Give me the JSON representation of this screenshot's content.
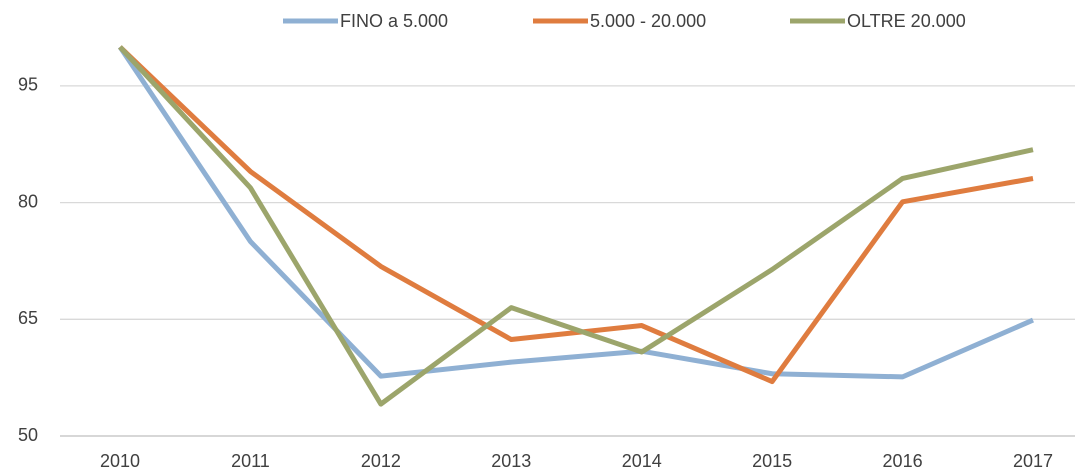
{
  "chart_data": {
    "type": "line",
    "categories": [
      "2010",
      "2011",
      "2012",
      "2013",
      "2014",
      "2015",
      "2016",
      "2017"
    ],
    "series": [
      {
        "name": "FINO a 5.000",
        "color": "#8fb0d3",
        "values": [
          100,
          75,
          57.7,
          59.5,
          60.9,
          58,
          57.6,
          64.9
        ]
      },
      {
        "name": "5.000 - 20.000",
        "color": "#df7c3f",
        "values": [
          100,
          84,
          71.8,
          62.4,
          64.2,
          57,
          80.1,
          83.1
        ]
      },
      {
        "name": "OLTRE 20.000",
        "color": "#9ca56b",
        "values": [
          100,
          81.9,
          54.1,
          66.5,
          60.8,
          71.4,
          83.1,
          86.8
        ]
      }
    ],
    "ylim": [
      50,
      100
    ],
    "yticks": [
      50,
      65,
      80,
      95
    ],
    "grid": true,
    "legend": "top"
  }
}
